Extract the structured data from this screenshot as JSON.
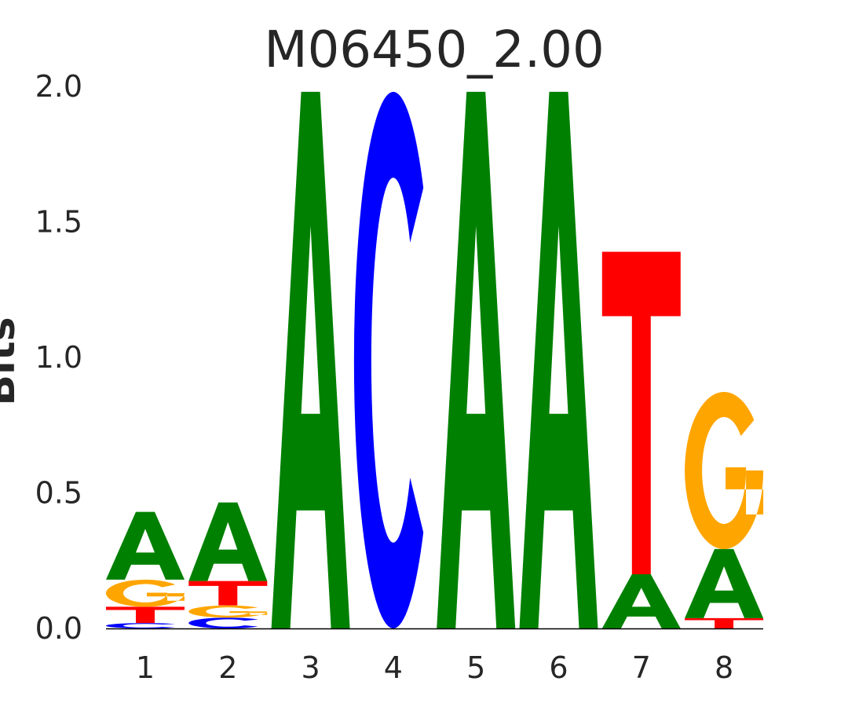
{
  "chart_data": {
    "type": "sequence-logo",
    "title": "M06450_2.00",
    "ylabel": "Bits",
    "xlabel": "",
    "ylim": [
      0,
      2.0
    ],
    "yticks": [
      "0.0",
      "0.5",
      "1.0",
      "1.5",
      "2.0"
    ],
    "ytick_values": [
      0,
      0.5,
      1.0,
      1.5,
      2.0
    ],
    "positions": [
      "1",
      "2",
      "3",
      "4",
      "5",
      "6",
      "7",
      "8"
    ],
    "colors": {
      "A": "#008000",
      "C": "#0000ff",
      "G": "#ffa500",
      "T": "#ff0000"
    },
    "stacks": [
      [
        {
          "base": "C",
          "bits": 0.02
        },
        {
          "base": "T",
          "bits": 0.06
        },
        {
          "base": "G",
          "bits": 0.1
        },
        {
          "base": "A",
          "bits": 0.25
        }
      ],
      [
        {
          "base": "C",
          "bits": 0.04
        },
        {
          "base": "G",
          "bits": 0.045
        },
        {
          "base": "T",
          "bits": 0.09
        },
        {
          "base": "A",
          "bits": 0.29
        }
      ],
      [
        {
          "base": "A",
          "bits": 1.98
        }
      ],
      [
        {
          "base": "C",
          "bits": 1.98
        }
      ],
      [
        {
          "base": "A",
          "bits": 1.98
        }
      ],
      [
        {
          "base": "A",
          "bits": 1.98
        }
      ],
      [
        {
          "base": "A",
          "bits": 0.2
        },
        {
          "base": "T",
          "bits": 1.19
        }
      ],
      [
        {
          "base": "T",
          "bits": 0.038
        },
        {
          "base": "A",
          "bits": 0.255
        },
        {
          "base": "G",
          "bits": 0.58
        }
      ]
    ]
  }
}
